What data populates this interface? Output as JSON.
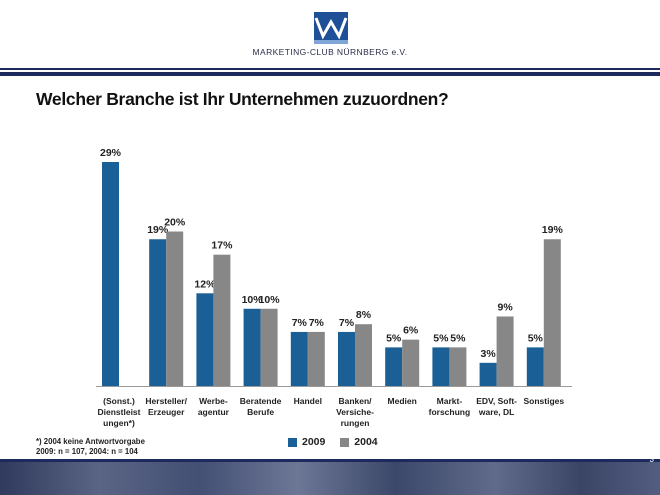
{
  "header": {
    "brand": "MARKETING-CLUB NÜRNBERG e.V.",
    "logo_icon": "mc-logo-icon"
  },
  "title": "Welcher Branche ist Ihr Unternehmen zuzuordnen?",
  "footnote": {
    "line1": "*) 2004 keine Antwortvorgabe",
    "line2": "2009: n = 107, 2004: n = 104"
  },
  "page_number": "3",
  "colors": {
    "series_2009": "#1a5f96",
    "series_2004": "#878787",
    "header_band": "#1d2a5e"
  },
  "chart_data": {
    "type": "bar",
    "title": "",
    "xlabel": "",
    "ylabel": "",
    "ylim": [
      0,
      30
    ],
    "grid": false,
    "legend_position": "bottom",
    "categories": [
      [
        "(Sonst.)",
        "Dienstleist",
        "ungen*)"
      ],
      [
        "Hersteller/",
        "Erzeuger"
      ],
      [
        "Werbe-",
        "agentur"
      ],
      [
        "Beratende",
        "Berufe"
      ],
      [
        "Handel"
      ],
      [
        "Banken/",
        "Versiche-",
        "rungen"
      ],
      [
        "Medien"
      ],
      [
        "Markt-",
        "forschung"
      ],
      [
        "EDV, Soft-",
        "ware, DL"
      ],
      [
        "Sonstiges"
      ]
    ],
    "series": [
      {
        "name": "2009",
        "values": [
          29,
          19,
          12,
          10,
          7,
          7,
          5,
          5,
          3,
          5
        ],
        "labels": [
          "29%",
          "19%",
          "12%",
          "10%",
          "7%",
          "7%",
          "5%",
          "5%",
          "3%",
          "5%"
        ]
      },
      {
        "name": "2004",
        "values": [
          null,
          20,
          17,
          10,
          7,
          8,
          6,
          5,
          9,
          19
        ],
        "labels": [
          "",
          "20%",
          "17%",
          "10%",
          "7%",
          "8%",
          "6%",
          "5%",
          "9%",
          "19%"
        ]
      }
    ]
  }
}
